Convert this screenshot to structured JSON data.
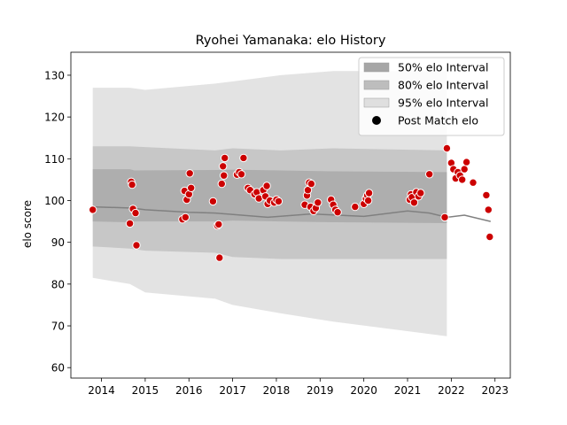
{
  "chart_data": {
    "type": "scatter",
    "title": "Ryohei Yamanaka: elo History",
    "xlabel": "",
    "ylabel": "elo score",
    "xlim": [
      2013.3,
      2023.35
    ],
    "ylim": [
      57.5,
      135.5
    ],
    "xticks": [
      "2014",
      "2015",
      "2016",
      "2017",
      "2018",
      "2019",
      "2020",
      "2021",
      "2022",
      "2023"
    ],
    "yticks": [
      "60",
      "70",
      "80",
      "90",
      "100",
      "110",
      "120",
      "130"
    ],
    "legend": {
      "placement": "top-right",
      "entries": [
        "50% elo Interval",
        "80% elo Interval",
        "95% elo Interval",
        "Post Match elo"
      ]
    },
    "colors": {
      "band50": "#a6a6a6",
      "band80": "#bdbdbd",
      "band95": "#d9d9d9",
      "mean_line": "#808080",
      "point": "#cc0000",
      "point_edge": "#ffffff"
    },
    "series": [
      {
        "name": "50% elo Interval",
        "kind": "band",
        "x": [
          2013.8,
          2014.65,
          2014.75,
          2016.6,
          2017.0,
          2018.1,
          2019.3,
          2021.9
        ],
        "lower": [
          95.0,
          94.8,
          95.0,
          95.0,
          95.2,
          95.0,
          94.8,
          94.6
        ],
        "upper": [
          107.5,
          107.5,
          107.2,
          107.3,
          107.4,
          107.2,
          107.0,
          106.8
        ]
      },
      {
        "name": "80% elo Interval",
        "kind": "band",
        "x": [
          2013.8,
          2014.65,
          2015.0,
          2016.6,
          2017.0,
          2018.1,
          2019.3,
          2021.9
        ],
        "lower": [
          89.0,
          88.5,
          88.0,
          87.5,
          86.5,
          86.0,
          86.0,
          86.0
        ],
        "upper": [
          113.0,
          113.0,
          112.8,
          112.0,
          112.5,
          112.0,
          112.5,
          112.0
        ]
      },
      {
        "name": "95% elo Interval",
        "kind": "band",
        "x": [
          2013.8,
          2014.65,
          2015.0,
          2016.6,
          2017.0,
          2018.1,
          2019.3,
          2021.9
        ],
        "lower": [
          81.5,
          80.0,
          78.0,
          76.5,
          75.0,
          73.0,
          71.0,
          67.5
        ],
        "upper": [
          127.0,
          127.0,
          126.5,
          128.0,
          128.5,
          130.0,
          131.0,
          131.0
        ]
      },
      {
        "name": "",
        "kind": "line",
        "x": [
          2013.8,
          2014.7,
          2015.0,
          2016.0,
          2016.6,
          2017.2,
          2017.8,
          2018.8,
          2019.4,
          2020.0,
          2021.0,
          2021.5,
          2021.9,
          2022.3,
          2022.9
        ],
        "y": [
          98.5,
          98.2,
          97.8,
          97.2,
          97.0,
          96.5,
          96.0,
          96.8,
          96.5,
          96.2,
          97.5,
          97.0,
          96.0,
          96.5,
          95.0
        ]
      },
      {
        "name": "Post Match elo",
        "kind": "points",
        "x": [
          2013.8,
          2014.65,
          2014.68,
          2014.7,
          2014.72,
          2014.78,
          2014.8,
          2015.85,
          2015.9,
          2015.92,
          2015.95,
          2016.0,
          2016.02,
          2016.05,
          2016.55,
          2016.65,
          2016.68,
          2016.7,
          2016.75,
          2016.78,
          2016.8,
          2016.82,
          2017.1,
          2017.15,
          2017.2,
          2017.25,
          2017.35,
          2017.4,
          2017.5,
          2017.55,
          2017.6,
          2017.7,
          2017.75,
          2017.78,
          2017.8,
          2017.85,
          2017.95,
          2018.0,
          2018.05,
          2018.65,
          2018.7,
          2018.72,
          2018.75,
          2018.78,
          2018.8,
          2018.85,
          2018.9,
          2018.95,
          2019.25,
          2019.3,
          2019.35,
          2019.4,
          2019.8,
          2020.0,
          2020.05,
          2020.08,
          2020.1,
          2020.12,
          2021.05,
          2021.08,
          2021.1,
          2021.15,
          2021.2,
          2021.25,
          2021.3,
          2021.5,
          2021.85,
          2021.9,
          2022.0,
          2022.05,
          2022.1,
          2022.15,
          2022.2,
          2022.25,
          2022.3,
          2022.35,
          2022.5,
          2022.8,
          2022.85,
          2022.88
        ],
        "y": [
          97.8,
          94.5,
          104.5,
          103.8,
          98.0,
          97.0,
          89.3,
          95.5,
          102.3,
          96.0,
          100.2,
          101.5,
          106.5,
          103.0,
          99.8,
          94.0,
          94.3,
          86.3,
          104.0,
          108.2,
          106.0,
          110.2,
          106.2,
          106.8,
          106.3,
          110.2,
          103.0,
          102.5,
          101.5,
          102.0,
          100.5,
          102.5,
          101.0,
          103.5,
          99.2,
          100.0,
          99.5,
          100.2,
          99.8,
          99.0,
          101.2,
          102.5,
          104.3,
          98.5,
          104.0,
          97.5,
          98.2,
          99.5,
          100.2,
          99.0,
          97.8,
          97.2,
          98.5,
          99.2,
          100.5,
          101.2,
          100.0,
          101.8,
          100.2,
          101.5,
          100.8,
          99.5,
          102.0,
          101.0,
          101.8,
          106.3,
          96.0,
          112.5,
          109.0,
          107.5,
          105.3,
          106.8,
          106.0,
          105.0,
          107.5,
          109.2,
          104.3,
          101.3,
          97.8,
          91.3
        ]
      }
    ]
  }
}
